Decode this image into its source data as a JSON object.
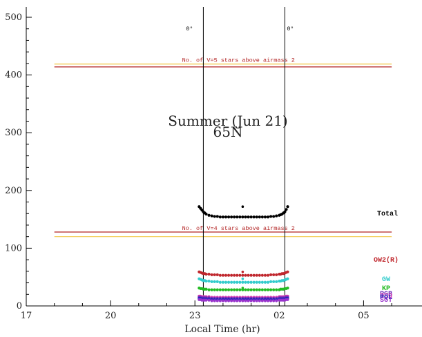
{
  "chart_data": {
    "type": "scatter",
    "title": "Summer (Jun 21)",
    "subtitle": "65N",
    "xlabel": "Local Time (hr)",
    "ylabel": "",
    "x_ticks": [
      "17",
      "20",
      "23",
      "02",
      "05"
    ],
    "y_ticks": [
      "0",
      "100",
      "200",
      "300",
      "400",
      "500"
    ],
    "x_range_hours": [
      17,
      30.5
    ],
    "ylim": [
      0,
      520
    ],
    "grid": false,
    "vertical_markers": [
      {
        "x": 23.3,
        "label": "0°"
      },
      {
        "x": 26.2,
        "label": "0°"
      }
    ],
    "reference_lines": [
      {
        "label": "No. of V=5 stars above airmass 2",
        "values": [
          419,
          414
        ],
        "colors": [
          "#f2c94c",
          "#b22222"
        ]
      },
      {
        "label": "No. of V=4 stars above airmass 2",
        "values": [
          128,
          120
        ],
        "colors": [
          "#b22222",
          "#f2c94c"
        ]
      }
    ],
    "x": [
      23.15,
      23.2,
      23.25,
      23.3,
      23.35,
      23.4,
      23.5,
      23.6,
      23.7,
      23.8,
      23.9,
      24.0,
      24.1,
      24.2,
      24.3,
      24.4,
      24.5,
      24.6,
      24.7,
      24.8,
      24.9,
      25.0,
      25.1,
      25.2,
      25.3,
      25.4,
      25.5,
      25.6,
      25.7,
      25.8,
      25.9,
      26.0,
      26.05,
      26.1,
      26.15,
      26.2,
      26.25,
      26.3
    ],
    "series": [
      {
        "name": "Total",
        "color": "#000000",
        "values": [
          172,
          169,
          166,
          163,
          161,
          159,
          157,
          156,
          155,
          155,
          154,
          154,
          154,
          154,
          154,
          154,
          154,
          154,
          154,
          154,
          154,
          154,
          154,
          154,
          154,
          154,
          154,
          154,
          155,
          155,
          156,
          157,
          158,
          159,
          161,
          163,
          167,
          172
        ],
        "extra_points": [
          {
            "x": 24.7,
            "y": 172
          }
        ]
      },
      {
        "name": "OW2(R)",
        "color": "#c0272d",
        "values": [
          59,
          58,
          57,
          56,
          56,
          55,
          55,
          54,
          54,
          54,
          53,
          53,
          53,
          53,
          53,
          53,
          53,
          53,
          53,
          53,
          53,
          53,
          53,
          53,
          53,
          53,
          53,
          53,
          54,
          54,
          54,
          55,
          55,
          56,
          56,
          57,
          58,
          59
        ],
        "extra_points": [
          {
            "x": 24.7,
            "y": 59
          }
        ]
      },
      {
        "name": "GW",
        "color": "#33cccc",
        "values": [
          47,
          46,
          45,
          44,
          44,
          43,
          43,
          42,
          42,
          42,
          41,
          41,
          41,
          41,
          41,
          41,
          41,
          41,
          41,
          41,
          41,
          41,
          41,
          41,
          41,
          41,
          41,
          41,
          42,
          42,
          42,
          43,
          43,
          44,
          44,
          45,
          46,
          47
        ],
        "extra_points": [
          {
            "x": 24.7,
            "y": 47
          }
        ]
      },
      {
        "name": "KP",
        "color": "#22bb22",
        "values": [
          31,
          30,
          30,
          29,
          29,
          29,
          28,
          28,
          28,
          28,
          28,
          28,
          28,
          28,
          28,
          28,
          28,
          28,
          28,
          28,
          28,
          28,
          28,
          28,
          28,
          28,
          28,
          28,
          28,
          28,
          28,
          28,
          29,
          29,
          29,
          30,
          30,
          31
        ],
        "extra_points": [
          {
            "x": 24.7,
            "y": 31
          }
        ]
      },
      {
        "name": "RSO",
        "color": "#d23fb3",
        "values": [
          17,
          17,
          16,
          16,
          16,
          16,
          16,
          15,
          15,
          15,
          15,
          15,
          15,
          15,
          15,
          15,
          15,
          15,
          15,
          15,
          15,
          15,
          15,
          15,
          15,
          15,
          15,
          15,
          15,
          15,
          15,
          16,
          16,
          16,
          16,
          16,
          17,
          17
        ]
      },
      {
        "name": "RGB",
        "color": "#6a2bb8",
        "values": [
          15,
          15,
          14,
          14,
          14,
          14,
          14,
          13,
          13,
          13,
          13,
          13,
          13,
          13,
          13,
          13,
          13,
          13,
          13,
          13,
          13,
          13,
          13,
          13,
          13,
          13,
          13,
          13,
          13,
          13,
          13,
          14,
          14,
          14,
          14,
          14,
          15,
          15
        ]
      },
      {
        "name": "POL",
        "color": "#2222bb",
        "values": [
          13,
          13,
          12,
          12,
          12,
          12,
          12,
          11,
          11,
          11,
          11,
          11,
          11,
          11,
          11,
          11,
          11,
          11,
          11,
          11,
          11,
          11,
          11,
          11,
          11,
          11,
          11,
          11,
          11,
          11,
          11,
          12,
          12,
          12,
          12,
          12,
          13,
          13
        ]
      },
      {
        "name": "SGT",
        "color": "#9933cc",
        "values": [
          11,
          11,
          10,
          10,
          10,
          10,
          10,
          9,
          9,
          9,
          9,
          9,
          9,
          9,
          9,
          9,
          9,
          9,
          9,
          9,
          9,
          9,
          9,
          9,
          9,
          9,
          9,
          9,
          9,
          9,
          9,
          10,
          10,
          10,
          10,
          10,
          11,
          11
        ]
      }
    ],
    "series_labels": [
      {
        "text": "Total",
        "color": "#000000"
      },
      {
        "text": "OW2(R)",
        "color": "#c0272d"
      },
      {
        "text": "GW",
        "color": "#33cccc"
      },
      {
        "text": "KP",
        "color": "#22bb22"
      },
      {
        "text": "RGB",
        "color": "#6a2bb8"
      },
      {
        "text": "RSO",
        "color": "#d23fb3"
      },
      {
        "text": "POL",
        "color": "#2222bb"
      },
      {
        "text": "SGT",
        "color": "#9933cc"
      }
    ]
  }
}
